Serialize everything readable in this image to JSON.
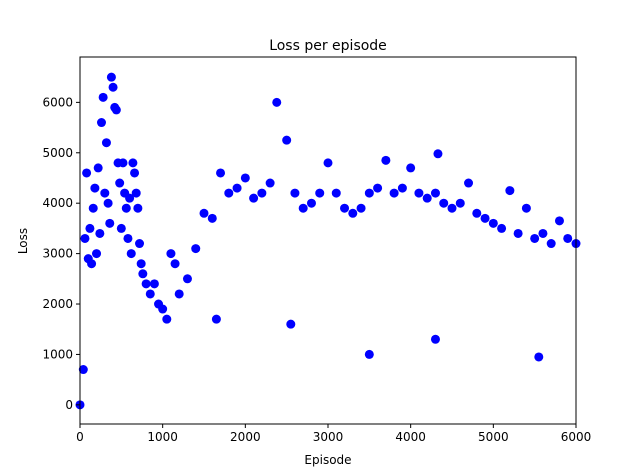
{
  "chart_data": {
    "type": "scatter",
    "title": "Loss per episode",
    "xlabel": "Episode",
    "ylabel": "Loss",
    "xlim": [
      0,
      6000
    ],
    "ylim": [
      -380,
      6900
    ],
    "xticks": [
      0,
      1000,
      2000,
      3000,
      4000,
      5000,
      6000
    ],
    "yticks": [
      0,
      1000,
      2000,
      3000,
      4000,
      5000,
      6000
    ],
    "grid": false,
    "legend": "none",
    "marker_color": "#0000ff",
    "series": [
      {
        "name": "",
        "points": [
          [
            0,
            0
          ],
          [
            40,
            700
          ],
          [
            60,
            3300
          ],
          [
            80,
            4600
          ],
          [
            100,
            2900
          ],
          [
            120,
            3500
          ],
          [
            140,
            2800
          ],
          [
            160,
            3900
          ],
          [
            180,
            4300
          ],
          [
            200,
            3000
          ],
          [
            220,
            4700
          ],
          [
            240,
            3400
          ],
          [
            260,
            5600
          ],
          [
            280,
            6100
          ],
          [
            300,
            4200
          ],
          [
            320,
            5200
          ],
          [
            340,
            4000
          ],
          [
            360,
            3600
          ],
          [
            380,
            6500
          ],
          [
            400,
            6300
          ],
          [
            420,
            5900
          ],
          [
            440,
            5850
          ],
          [
            460,
            4800
          ],
          [
            480,
            4400
          ],
          [
            500,
            3500
          ],
          [
            520,
            4800
          ],
          [
            540,
            4200
          ],
          [
            560,
            3900
          ],
          [
            580,
            3300
          ],
          [
            600,
            4100
          ],
          [
            620,
            3000
          ],
          [
            640,
            4800
          ],
          [
            660,
            4600
          ],
          [
            680,
            4200
          ],
          [
            700,
            3900
          ],
          [
            720,
            3200
          ],
          [
            740,
            2800
          ],
          [
            760,
            2600
          ],
          [
            800,
            2400
          ],
          [
            850,
            2200
          ],
          [
            900,
            2400
          ],
          [
            950,
            2000
          ],
          [
            1000,
            1900
          ],
          [
            1050,
            1700
          ],
          [
            1100,
            3000
          ],
          [
            1150,
            2800
          ],
          [
            1200,
            2200
          ],
          [
            1300,
            2500
          ],
          [
            1400,
            3100
          ],
          [
            1500,
            3800
          ],
          [
            1600,
            3700
          ],
          [
            1700,
            4600
          ],
          [
            1800,
            4200
          ],
          [
            1900,
            4300
          ],
          [
            2000,
            4500
          ],
          [
            2100,
            4100
          ],
          [
            2200,
            4200
          ],
          [
            2300,
            4400
          ],
          [
            2380,
            6000
          ],
          [
            2500,
            5250
          ],
          [
            2600,
            4200
          ],
          [
            2700,
            3900
          ],
          [
            2800,
            4000
          ],
          [
            2900,
            4200
          ],
          [
            3000,
            4800
          ],
          [
            3100,
            4200
          ],
          [
            3200,
            3900
          ],
          [
            3300,
            3800
          ],
          [
            3400,
            3900
          ],
          [
            3500,
            4200
          ],
          [
            3600,
            4300
          ],
          [
            3700,
            4850
          ],
          [
            3800,
            4200
          ],
          [
            3900,
            4300
          ],
          [
            4000,
            4700
          ],
          [
            4100,
            4200
          ],
          [
            4200,
            4100
          ],
          [
            4300,
            4200
          ],
          [
            4330,
            4980
          ],
          [
            4400,
            4000
          ],
          [
            4500,
            3900
          ],
          [
            4600,
            4000
          ],
          [
            4700,
            4400
          ],
          [
            4800,
            3800
          ],
          [
            4900,
            3700
          ],
          [
            5000,
            3600
          ],
          [
            5100,
            3500
          ],
          [
            5200,
            4250
          ],
          [
            5300,
            3400
          ],
          [
            5400,
            3900
          ],
          [
            5500,
            3300
          ],
          [
            5600,
            3400
          ],
          [
            5700,
            3200
          ],
          [
            5800,
            3650
          ],
          [
            5900,
            3300
          ],
          [
            6000,
            3200
          ],
          [
            3500,
            1000
          ],
          [
            5550,
            950
          ],
          [
            2550,
            1600
          ],
          [
            1650,
            1700
          ],
          [
            4300,
            1300
          ]
        ]
      }
    ]
  }
}
